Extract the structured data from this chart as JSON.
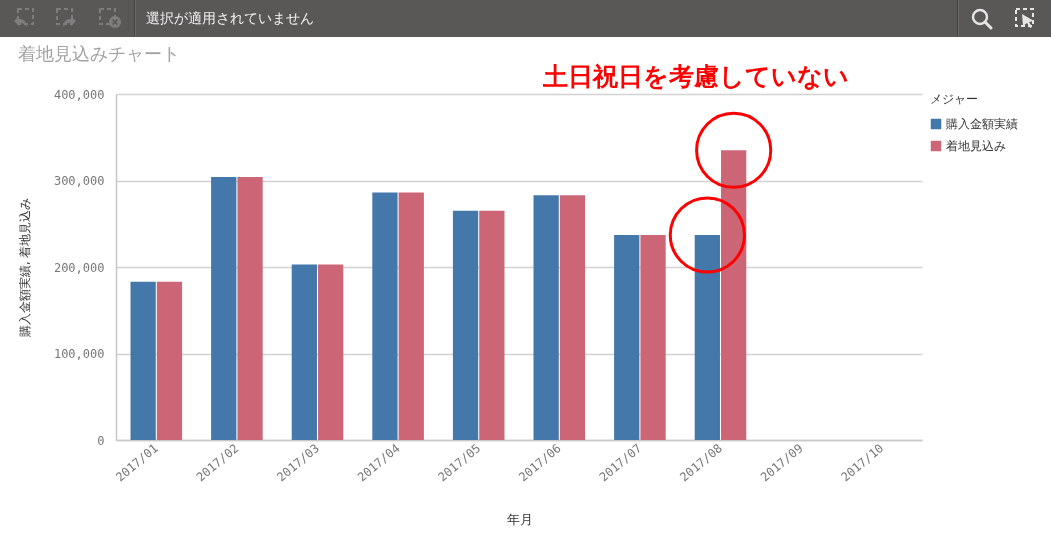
{
  "chart_data": {
    "type": "bar",
    "title": "着地見込みチャート",
    "annotations": [
      "選択が適用されていません",
      "土日祝日を考慮していない"
    ],
    "categories": [
      "2017/01",
      "2017/02",
      "2017/03",
      "2017/04",
      "2017/05",
      "2017/06",
      "2017/07",
      "2017/08",
      "2017/09",
      "2017/10"
    ],
    "series": [
      {
        "name": "購入金額実績",
        "color": "#4477aa",
        "values": [
          183000,
          304000,
          203000,
          286000,
          265000,
          283000,
          237000,
          237000,
          null,
          null
        ]
      },
      {
        "name": "着地見込み",
        "color": "#cc6677",
        "values": [
          183000,
          304000,
          203000,
          286000,
          265000,
          283000,
          237000,
          335000,
          null,
          null
        ]
      }
    ],
    "xlabel": "年月",
    "ylabel": "購入金額実績, 着地見込み",
    "legend_title": "メジャー",
    "legend": "right",
    "ylim": [
      0,
      400000
    ],
    "yticks": [
      0,
      {
        "value": 100000,
        "label": "100,000"
      },
      {
        "value": 200000,
        "label": "200,000"
      },
      {
        "value": 300000,
        "label": "300,000"
      },
      {
        "value": 400000,
        "label": "400,000"
      }
    ],
    "grid": "y"
  }
}
